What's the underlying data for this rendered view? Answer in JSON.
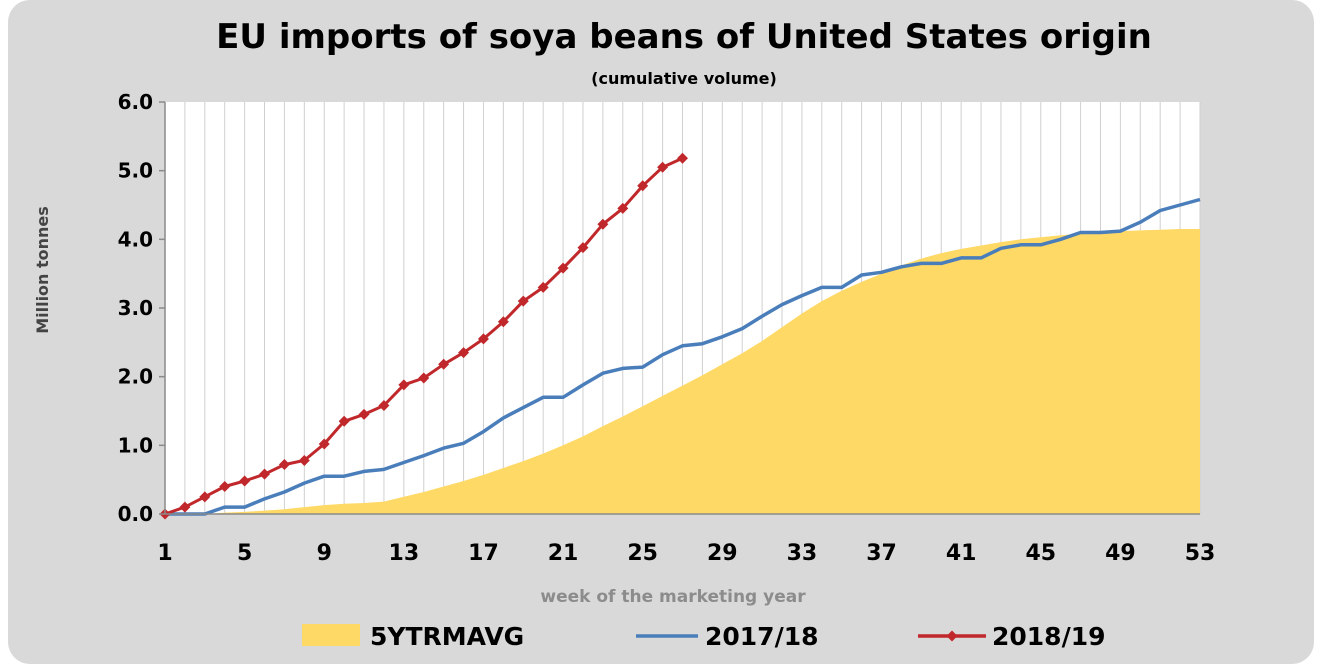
{
  "chart_data": {
    "type": "line",
    "title": "EU imports of soya beans of United States origin",
    "subtitle": "(cumulative volume)",
    "xlabel": "week of the marketing year",
    "ylabel": "Million tonnes",
    "xlim": [
      1,
      53
    ],
    "ylim": [
      0,
      6
    ],
    "x_ticks": [
      "1",
      "5",
      "9",
      "13",
      "17",
      "21",
      "25",
      "29",
      "33",
      "37",
      "41",
      "45",
      "49",
      "53"
    ],
    "y_ticks": [
      "0.0",
      "1.0",
      "2.0",
      "3.0",
      "4.0",
      "5.0",
      "6.0"
    ],
    "grid": "vertical",
    "legend_position": "bottom",
    "series": [
      {
        "name": "5YTRMAVG",
        "style": "area",
        "color": "#ffd966",
        "x": [
          1,
          2,
          3,
          4,
          5,
          6,
          7,
          8,
          9,
          10,
          11,
          12,
          13,
          14,
          15,
          16,
          17,
          18,
          19,
          20,
          21,
          22,
          23,
          24,
          25,
          26,
          27,
          28,
          29,
          30,
          31,
          32,
          33,
          34,
          35,
          36,
          37,
          38,
          39,
          40,
          41,
          42,
          43,
          44,
          45,
          46,
          47,
          48,
          49,
          50,
          51,
          52,
          53
        ],
        "values": [
          0,
          0,
          0,
          0.02,
          0.03,
          0.05,
          0.07,
          0.1,
          0.13,
          0.15,
          0.16,
          0.18,
          0.25,
          0.32,
          0.4,
          0.48,
          0.57,
          0.67,
          0.77,
          0.88,
          1.0,
          1.13,
          1.28,
          1.42,
          1.57,
          1.72,
          1.87,
          2.02,
          2.18,
          2.34,
          2.52,
          2.72,
          2.92,
          3.1,
          3.25,
          3.38,
          3.5,
          3.62,
          3.72,
          3.8,
          3.86,
          3.91,
          3.96,
          4.0,
          4.03,
          4.06,
          4.08,
          4.1,
          4.12,
          4.13,
          4.14,
          4.15,
          4.15
        ]
      },
      {
        "name": "2017/18",
        "style": "line",
        "color": "#4a7ebb",
        "x": [
          1,
          2,
          3,
          4,
          5,
          6,
          7,
          8,
          9,
          10,
          11,
          12,
          13,
          14,
          15,
          16,
          17,
          18,
          19,
          20,
          21,
          22,
          23,
          24,
          25,
          26,
          27,
          28,
          29,
          30,
          31,
          32,
          33,
          34,
          35,
          36,
          37,
          38,
          39,
          40,
          41,
          42,
          43,
          44,
          45,
          46,
          47,
          48,
          49,
          50,
          51,
          52,
          53
        ],
        "values": [
          0,
          0,
          0,
          0.1,
          0.1,
          0.22,
          0.32,
          0.45,
          0.55,
          0.55,
          0.62,
          0.65,
          0.75,
          0.85,
          0.96,
          1.03,
          1.2,
          1.4,
          1.55,
          1.7,
          1.7,
          1.88,
          2.05,
          2.12,
          2.14,
          2.32,
          2.45,
          2.48,
          2.58,
          2.7,
          2.88,
          3.05,
          3.18,
          3.3,
          3.3,
          3.48,
          3.52,
          3.6,
          3.65,
          3.65,
          3.73,
          3.73,
          3.87,
          3.92,
          3.92,
          4.0,
          4.1,
          4.1,
          4.12,
          4.25,
          4.42,
          4.5,
          4.58
        ]
      },
      {
        "name": "2018/19",
        "style": "line-marker",
        "color": "#c0282b",
        "x": [
          1,
          2,
          3,
          4,
          5,
          6,
          7,
          8,
          9,
          10,
          11,
          12,
          13,
          14,
          15,
          16,
          17,
          18,
          19,
          20,
          21,
          22,
          23,
          24,
          25,
          26,
          27
        ],
        "values": [
          0,
          0.1,
          0.25,
          0.4,
          0.48,
          0.58,
          0.72,
          0.78,
          1.02,
          1.35,
          1.45,
          1.58,
          1.88,
          1.98,
          2.18,
          2.35,
          2.55,
          2.8,
          3.1,
          3.3,
          3.58,
          3.88,
          4.22,
          4.45,
          4.78,
          5.05,
          5.18
        ]
      }
    ]
  }
}
